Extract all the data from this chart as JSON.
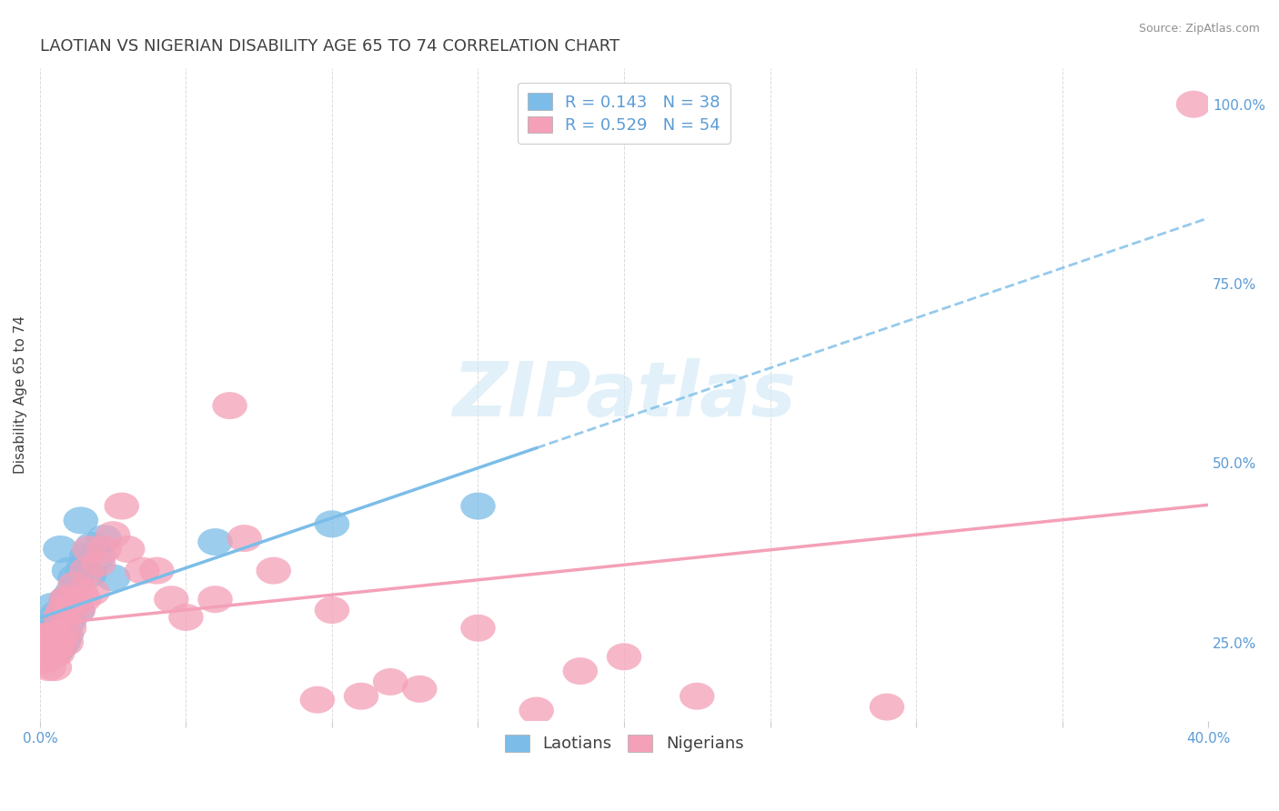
{
  "title": "LAOTIAN VS NIGERIAN DISABILITY AGE 65 TO 74 CORRELATION CHART",
  "source_text": "Source: ZipAtlas.com",
  "ylabel": "Disability Age 65 to 74",
  "xlim": [
    0.0,
    0.4
  ],
  "ylim": [
    0.14,
    1.05
  ],
  "xticks": [
    0.0,
    0.05,
    0.1,
    0.15,
    0.2,
    0.25,
    0.3,
    0.35,
    0.4
  ],
  "yticks_right": [
    0.25,
    0.5,
    0.75,
    1.0
  ],
  "yticklabels_right": [
    "25.0%",
    "50.0%",
    "75.0%",
    "100.0%"
  ],
  "laotian_color": "#7bbde8",
  "nigerian_color": "#f4a0b8",
  "R_laotian": 0.143,
  "N_laotian": 38,
  "R_nigerian": 0.529,
  "N_nigerian": 54,
  "legend_label_laotian": "Laotians",
  "legend_label_nigerian": "Nigerians",
  "background_color": "#ffffff",
  "grid_color": "#d8d8d8",
  "title_color": "#404040",
  "source_color": "#909090",
  "watermark_color": "#d0e8f5",
  "tick_color": "#5b9bd5",
  "laotian_x": [
    0.001,
    0.002,
    0.002,
    0.003,
    0.003,
    0.003,
    0.004,
    0.004,
    0.004,
    0.005,
    0.005,
    0.005,
    0.006,
    0.006,
    0.006,
    0.007,
    0.007,
    0.007,
    0.008,
    0.008,
    0.009,
    0.009,
    0.01,
    0.01,
    0.011,
    0.012,
    0.013,
    0.014,
    0.015,
    0.016,
    0.017,
    0.018,
    0.02,
    0.022,
    0.025,
    0.06,
    0.1,
    0.15
  ],
  "laotian_y": [
    0.235,
    0.245,
    0.26,
    0.23,
    0.25,
    0.27,
    0.24,
    0.26,
    0.3,
    0.235,
    0.255,
    0.27,
    0.24,
    0.265,
    0.29,
    0.245,
    0.275,
    0.38,
    0.25,
    0.295,
    0.26,
    0.31,
    0.28,
    0.35,
    0.32,
    0.34,
    0.295,
    0.42,
    0.355,
    0.37,
    0.345,
    0.385,
    0.37,
    0.395,
    0.34,
    0.39,
    0.415,
    0.44
  ],
  "nigerian_x": [
    0.001,
    0.001,
    0.002,
    0.002,
    0.003,
    0.003,
    0.004,
    0.004,
    0.005,
    0.005,
    0.005,
    0.006,
    0.006,
    0.007,
    0.007,
    0.008,
    0.008,
    0.009,
    0.009,
    0.01,
    0.01,
    0.011,
    0.012,
    0.013,
    0.014,
    0.015,
    0.016,
    0.017,
    0.018,
    0.02,
    0.022,
    0.025,
    0.028,
    0.03,
    0.035,
    0.04,
    0.045,
    0.05,
    0.06,
    0.065,
    0.07,
    0.08,
    0.095,
    0.1,
    0.11,
    0.12,
    0.13,
    0.15,
    0.17,
    0.185,
    0.2,
    0.225,
    0.29,
    0.395
  ],
  "nigerian_y": [
    0.23,
    0.255,
    0.225,
    0.25,
    0.215,
    0.24,
    0.23,
    0.26,
    0.215,
    0.24,
    0.26,
    0.235,
    0.255,
    0.25,
    0.285,
    0.265,
    0.295,
    0.25,
    0.31,
    0.27,
    0.31,
    0.3,
    0.33,
    0.295,
    0.32,
    0.31,
    0.35,
    0.38,
    0.32,
    0.36,
    0.38,
    0.4,
    0.44,
    0.38,
    0.35,
    0.35,
    0.31,
    0.285,
    0.31,
    0.58,
    0.395,
    0.35,
    0.17,
    0.295,
    0.175,
    0.195,
    0.185,
    0.27,
    0.155,
    0.21,
    0.23,
    0.175,
    0.16,
    1.0
  ],
  "title_fontsize": 13,
  "axis_label_fontsize": 11,
  "tick_fontsize": 11,
  "legend_fontsize": 13
}
